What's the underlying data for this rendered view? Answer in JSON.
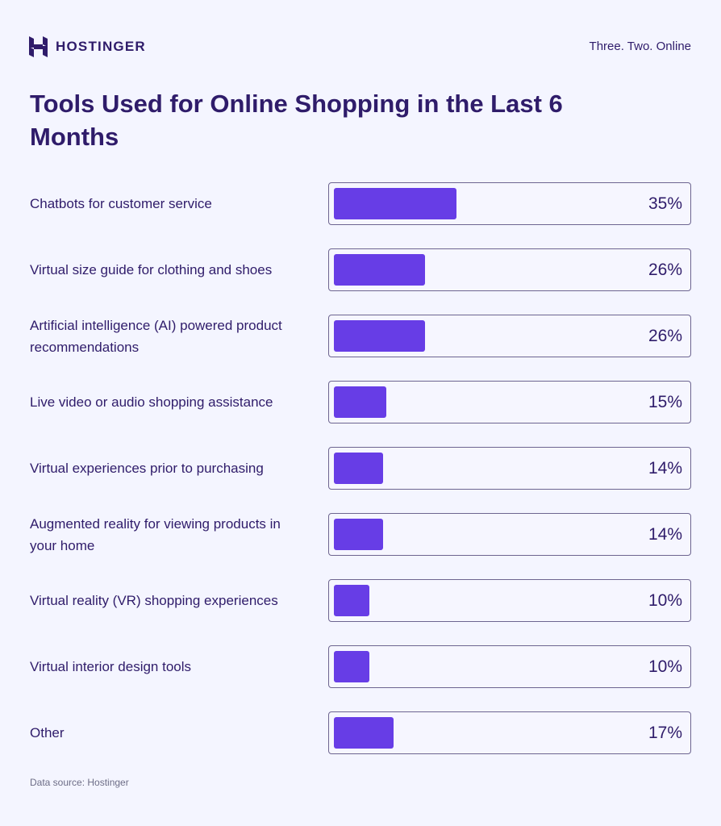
{
  "brand": {
    "name": "HOSTINGER",
    "tagline": "Three. Two. Online",
    "logo_icon": "hostinger-h-logo-icon"
  },
  "title": "Tools Used for Online Shopping in the Last 6 Months",
  "source": "Data source: Hostinger",
  "colors": {
    "background": "#f4f5ff",
    "bar": "#673de6",
    "text": "#2f1c6a",
    "box_border": "#6d6590"
  },
  "rows": [
    {
      "label": "Chatbots for customer service",
      "value": 35,
      "display": "35%"
    },
    {
      "label": "Virtual size guide for clothing and shoes",
      "value": 26,
      "display": "26%"
    },
    {
      "label": "Artificial intelligence (AI) powered product recommendations",
      "value": 26,
      "display": "26%"
    },
    {
      "label": "Live video or audio shopping assistance",
      "value": 15,
      "display": "15%"
    },
    {
      "label": "Virtual experiences prior to purchasing",
      "value": 14,
      "display": "14%"
    },
    {
      "label": "Augmented reality for viewing products in your home",
      "value": 14,
      "display": "14%"
    },
    {
      "label": "Virtual reality (VR) shopping experiences",
      "value": 10,
      "display": "10%"
    },
    {
      "label": "Virtual interior design tools",
      "value": 10,
      "display": "10%"
    },
    {
      "label": "Other",
      "value": 17,
      "display": "17%"
    }
  ],
  "chart_data": {
    "type": "bar",
    "orientation": "horizontal",
    "title": "Tools Used for Online Shopping in the Last 6 Months",
    "categories": [
      "Chatbots for customer service",
      "Virtual size guide for clothing and shoes",
      "Artificial intelligence (AI) powered product recommendations",
      "Live video or audio shopping assistance",
      "Virtual experiences prior to purchasing",
      "Augmented reality for viewing products in your home",
      "Virtual reality (VR) shopping experiences",
      "Virtual interior design tools",
      "Other"
    ],
    "values": [
      35,
      26,
      26,
      15,
      14,
      14,
      10,
      10,
      17
    ],
    "unit": "%",
    "xlabel": "",
    "ylabel": "",
    "xlim": [
      0,
      100
    ],
    "grid": false,
    "legend": null,
    "data_labels": true,
    "source": "Data source: Hostinger"
  }
}
